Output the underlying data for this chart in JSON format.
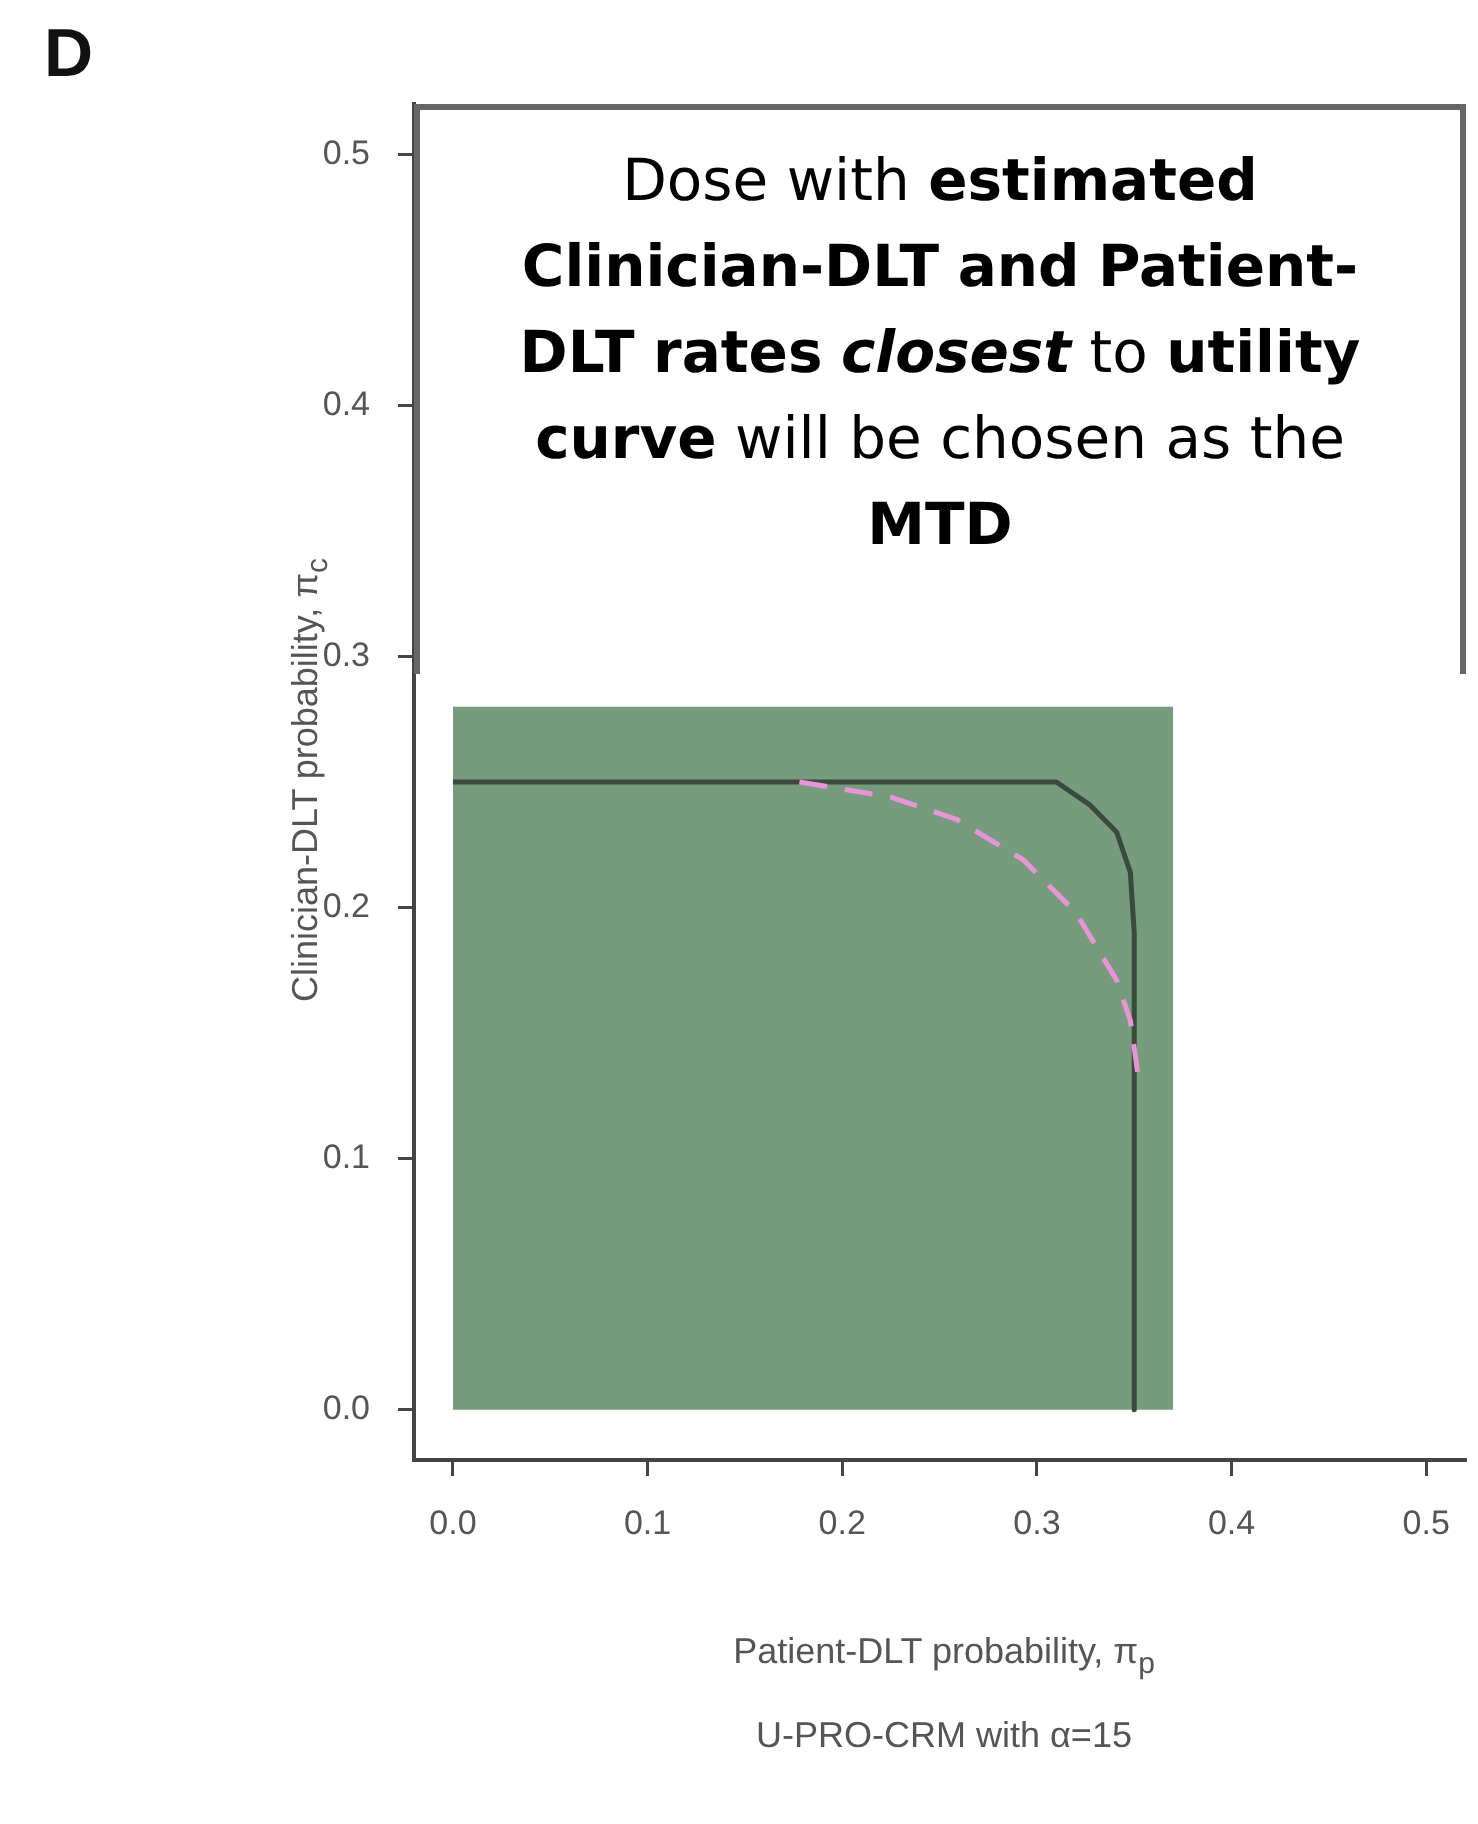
{
  "chart_data": {
    "type": "line",
    "xlabel": "Patient-DLT probability, π$_{p}$",
    "ylabel": "Clinician-DLT probability, π$_{c}$",
    "annotations": [
      "D",
      "Dose with estimated Clinician-DLT and Patient-DLT rates closest to utility curve will be chosen as the MTD",
      "U-PRO-CRM with α=15"
    ],
    "xlim": [
      -0.02,
      0.52
    ],
    "ylim": [
      -0.02,
      0.52
    ],
    "xticks": [
      {
        "value": 0,
        "label": "0.0"
      },
      0.1,
      0.2,
      0.3,
      0.4,
      0.5
    ],
    "yticks": [
      {
        "value": 0,
        "label": "0.0"
      },
      0.1,
      0.2,
      0.3,
      0.4,
      0.5
    ],
    "grid": false,
    "legend": false,
    "marker": "none",
    "series": [
      {
        "type": "area",
        "color": "#769b7d",
        "x": [
          0,
          0.37
        ],
        "values": [
          0.28,
          0.28
        ]
      },
      {
        "color": "#3a4a3e",
        "line_style": "solid",
        "x": [
          0,
          0.31,
          0.327,
          0.341,
          0.348,
          0.35,
          0.35
        ],
        "values": [
          0.25,
          0.25,
          0.241,
          0.23,
          0.214,
          0.19,
          0
        ]
      },
      {
        "color": "#e895d8",
        "line_style": "dashed",
        "x": [
          0.178,
          0.225,
          0.259,
          0.293,
          0.32,
          0.341,
          0.348,
          0.352
        ],
        "values": [
          0.25,
          0.244,
          0.235,
          0.219,
          0.198,
          0.171,
          0.155,
          0.133
        ]
      }
    ]
  }
}
